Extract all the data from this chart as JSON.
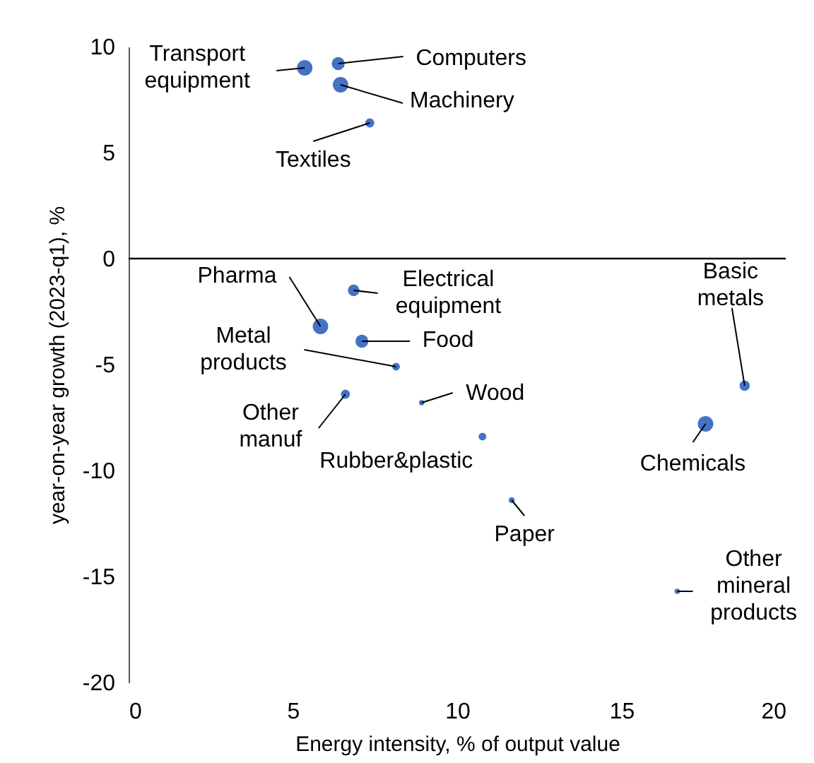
{
  "chart_data": {
    "type": "bubble",
    "xlabel": "Energy intensity, % of output value",
    "ylabel": "year-on-year growth (2023-q1), %",
    "xlim": [
      0,
      20
    ],
    "xticks": [
      0,
      5,
      10,
      15,
      20
    ],
    "ylim": [
      -20,
      10
    ],
    "yticks": [
      -20,
      -15,
      -10,
      -5,
      0,
      5,
      10
    ],
    "grid": false,
    "legend": false,
    "marker": "circle",
    "ref_lines": [
      {
        "axis": "y",
        "value": 0
      }
    ],
    "series": [
      {
        "color": "#4472c4",
        "x": [
          5.36,
          6.38,
          6.45,
          7.34,
          6.85,
          5.84,
          7.1,
          8.14,
          6.6,
          8.92,
          10.77,
          11.66,
          18.75,
          17.56,
          16.7
        ],
        "values": [
          9.0,
          9.2,
          8.2,
          6.4,
          -1.5,
          -3.2,
          -3.9,
          -5.1,
          -6.4,
          -6.8,
          -8.4,
          -11.4,
          -6.0,
          -7.8,
          -15.7
        ],
        "sizes": [
          1,
          0.7,
          1,
          0.34,
          0.56,
          1,
          0.7,
          0.25,
          0.34,
          0.12,
          0.25,
          0.15,
          0.44,
          1,
          0.12
        ]
      }
    ],
    "annotations": [
      {
        "text": "Transport equipment",
        "x": 5.36,
        "y": 9.0
      },
      {
        "text": "Computers",
        "x": 6.38,
        "y": 9.2
      },
      {
        "text": "Machinery",
        "x": 6.45,
        "y": 8.2
      },
      {
        "text": "Textiles",
        "x": 7.34,
        "y": 6.4
      },
      {
        "text": "Electrical equipment",
        "x": 6.85,
        "y": -1.5
      },
      {
        "text": "Pharma",
        "x": 5.84,
        "y": -3.2
      },
      {
        "text": "Food",
        "x": 7.1,
        "y": -3.9
      },
      {
        "text": "Metal products",
        "x": 8.14,
        "y": -5.1
      },
      {
        "text": "Other manuf",
        "x": 6.6,
        "y": -6.4
      },
      {
        "text": "Wood",
        "x": 8.92,
        "y": -6.8
      },
      {
        "text": "Rubber&plastic",
        "x": 10.77,
        "y": -8.4
      },
      {
        "text": "Paper",
        "x": 11.66,
        "y": -11.4
      },
      {
        "text": "Basic metals",
        "x": 18.75,
        "y": -6.0
      },
      {
        "text": "Chemicals",
        "x": 17.56,
        "y": -7.8
      },
      {
        "text": "Other mineral products",
        "x": 16.7,
        "y": -15.7
      }
    ]
  }
}
